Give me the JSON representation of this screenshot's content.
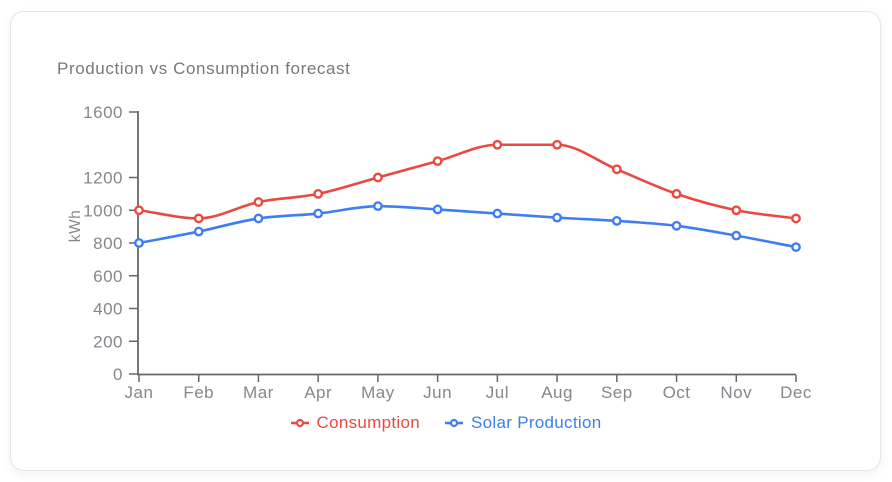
{
  "card": {
    "title": "Production vs Consumption forecast"
  },
  "chart_data": {
    "type": "line",
    "categories": [
      "Jan",
      "Feb",
      "Mar",
      "Apr",
      "May",
      "Jun",
      "Jul",
      "Aug",
      "Sep",
      "Oct",
      "Nov",
      "Dec"
    ],
    "series": [
      {
        "name": "Consumption",
        "color": "#e84a41",
        "values": [
          1000,
          950,
          1050,
          1100,
          1200,
          1300,
          1400,
          1400,
          1250,
          1100,
          1000,
          950
        ]
      },
      {
        "name": "Solar Production",
        "color": "#3e7df2",
        "values": [
          800,
          870,
          950,
          980,
          1025,
          1005,
          980,
          955,
          935,
          905,
          845,
          775
        ]
      }
    ],
    "xlabel": "",
    "ylabel": "kWh",
    "ylim": [
      0,
      1600
    ],
    "yticks": [
      0,
      200,
      400,
      600,
      800,
      1000,
      1200,
      1600
    ],
    "grid": false,
    "legend_position": "bottom",
    "point_style": "hollow-circle",
    "line_interpolation": "monotone",
    "axis_color": "#64676b",
    "label_color": "#84878c"
  }
}
